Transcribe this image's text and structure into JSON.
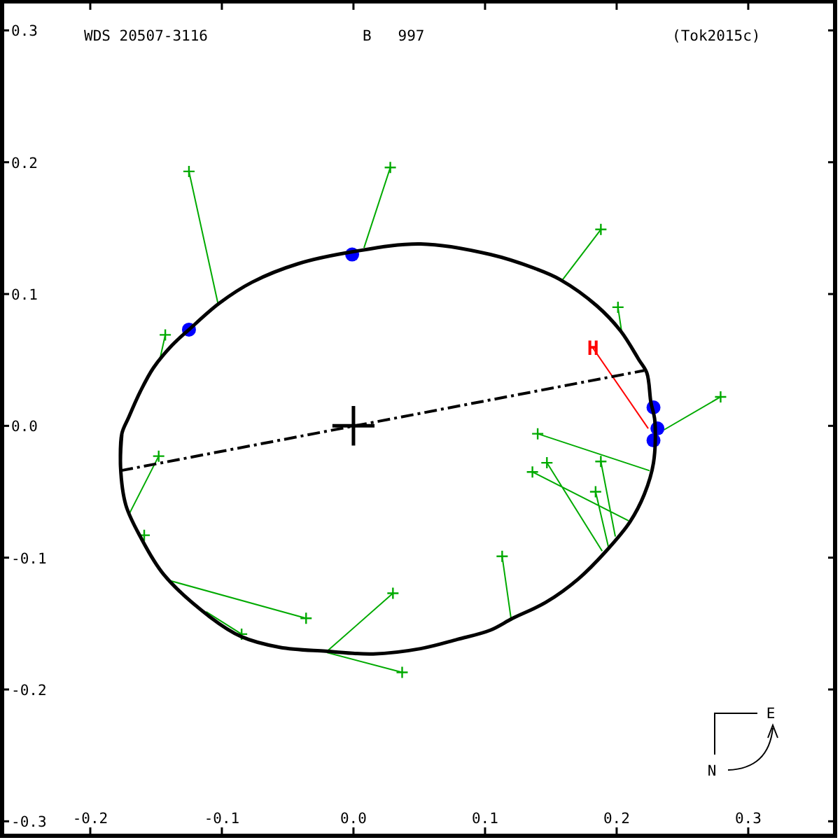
{
  "chart_data": {
    "type": "scatter",
    "title": "WDS 20507-3116",
    "subtitle": "B   997",
    "annotations": [
      "(Tok2015c)",
      "N",
      "E",
      {
        "text": "H",
        "x": 0.182,
        "y": 0.059
      }
    ],
    "xlim": [
      -0.267,
      0.366
    ],
    "ylim": [
      -0.311,
      0.322
    ],
    "xticks": [
      -0.2,
      -0.1,
      {
        "value": 0,
        "label": "0.0"
      },
      0.1,
      0.2,
      0.3
    ],
    "yticks": [
      -0.3,
      -0.2,
      -0.1,
      {
        "value": 0,
        "label": "0.0"
      },
      0.1,
      0.2,
      0.3
    ],
    "series": [
      {
        "type": "line",
        "color": "#00aa00",
        "line_style": "solid",
        "x": [
          -0.125,
          -0.103,
          null,
          0.028,
          0.008,
          null,
          -0.143,
          -0.147,
          null,
          0.188,
          0.159,
          null,
          0.201,
          0.204,
          null,
          0.279,
          0.236,
          null,
          0.14,
          0.225,
          null,
          0.147,
          0.189,
          null,
          0.136,
          0.209,
          null,
          0.188,
          0.199,
          null,
          0.184,
          0.194,
          null,
          0.113,
          0.12,
          null,
          -0.148,
          -0.171,
          null,
          -0.036,
          -0.141,
          null,
          -0.085,
          -0.112,
          null,
          0.03,
          -0.02,
          null,
          0.037,
          -0.02
        ],
        "values": [
          0.193,
          0.093,
          null,
          0.196,
          0.135,
          null,
          0.069,
          0.051,
          null,
          0.149,
          0.111,
          null,
          0.09,
          0.07,
          null,
          0.022,
          -0.003,
          null,
          -0.006,
          -0.034,
          null,
          -0.028,
          -0.095,
          null,
          -0.035,
          -0.072,
          null,
          -0.027,
          -0.084,
          null,
          -0.05,
          -0.093,
          null,
          -0.099,
          -0.148,
          null,
          -0.023,
          -0.068,
          null,
          -0.146,
          -0.117,
          null,
          -0.158,
          -0.141,
          null,
          -0.127,
          -0.171,
          null,
          -0.187,
          -0.172
        ]
      },
      {
        "type": "line",
        "color": "#ff0000",
        "line_style": "solid",
        "x": [
          0.182,
          0.224
        ],
        "values": [
          0.059,
          -0.002
        ]
      },
      {
        "color": "#00aa00",
        "marker": "cross",
        "x": [
          -0.125,
          0.028,
          -0.143,
          0.188,
          0.201,
          0.279,
          0.14,
          0.147,
          0.136,
          0.188,
          0.184,
          0.113,
          -0.148,
          -0.159,
          -0.036,
          -0.085,
          0.03,
          0.037
        ],
        "values": [
          0.193,
          0.196,
          0.069,
          0.149,
          0.09,
          0.022,
          -0.006,
          -0.028,
          -0.035,
          -0.027,
          -0.05,
          -0.099,
          -0.023,
          -0.083,
          -0.146,
          -0.158,
          -0.127,
          -0.187
        ]
      },
      {
        "color": "#0000ff",
        "marker": "circle",
        "x": [
          -0.125,
          -0.001,
          0.228,
          0.231,
          0.228
        ],
        "values": [
          0.073,
          0.13,
          0.014,
          -0.002,
          -0.011
        ]
      },
      {
        "type": "line",
        "color": "#000000",
        "line_style": "solid",
        "x": [
          -0.177,
          -0.176,
          -0.171,
          -0.162,
          -0.152,
          -0.138,
          -0.125,
          -0.102,
          -0.077,
          -0.042,
          -0.001,
          0.051,
          0.104,
          0.139,
          0.157,
          0.185,
          0.203,
          0.217,
          0.223,
          0.226,
          0.229,
          0.228,
          0.221,
          0.21,
          0.192,
          0.171,
          0.146,
          0.121,
          0.104,
          0.079,
          0.051,
          0.015,
          -0.021,
          -0.056,
          -0.085,
          -0.109,
          -0.144,
          -0.162,
          -0.173,
          -0.177,
          -0.176
        ],
        "values": [
          -0.031,
          -0.006,
          0.006,
          0.026,
          0.044,
          0.061,
          0.073,
          0.093,
          0.109,
          0.123,
          0.132,
          0.138,
          0.13,
          0.119,
          0.111,
          0.091,
          0.072,
          0.05,
          0.04,
          0.018,
          0.004,
          -0.028,
          -0.052,
          -0.073,
          -0.095,
          -0.116,
          -0.134,
          -0.146,
          -0.155,
          -0.162,
          -0.169,
          -0.173,
          -0.171,
          -0.168,
          -0.16,
          -0.145,
          -0.113,
          -0.084,
          -0.06,
          -0.031,
          -0.006
        ]
      },
      {
        "type": "line",
        "color": "#000000",
        "line_style": "dashed",
        "x": [
          -0.177,
          0.221
        ],
        "values": [
          -0.034,
          0.042
        ]
      },
      {
        "type": "line",
        "color": "#000000",
        "line_style": "solid",
        "x": [
          -0.016,
          0.016,
          null,
          0,
          0
        ],
        "values": [
          0,
          0,
          null,
          0.015,
          -0.015
        ]
      }
    ]
  }
}
